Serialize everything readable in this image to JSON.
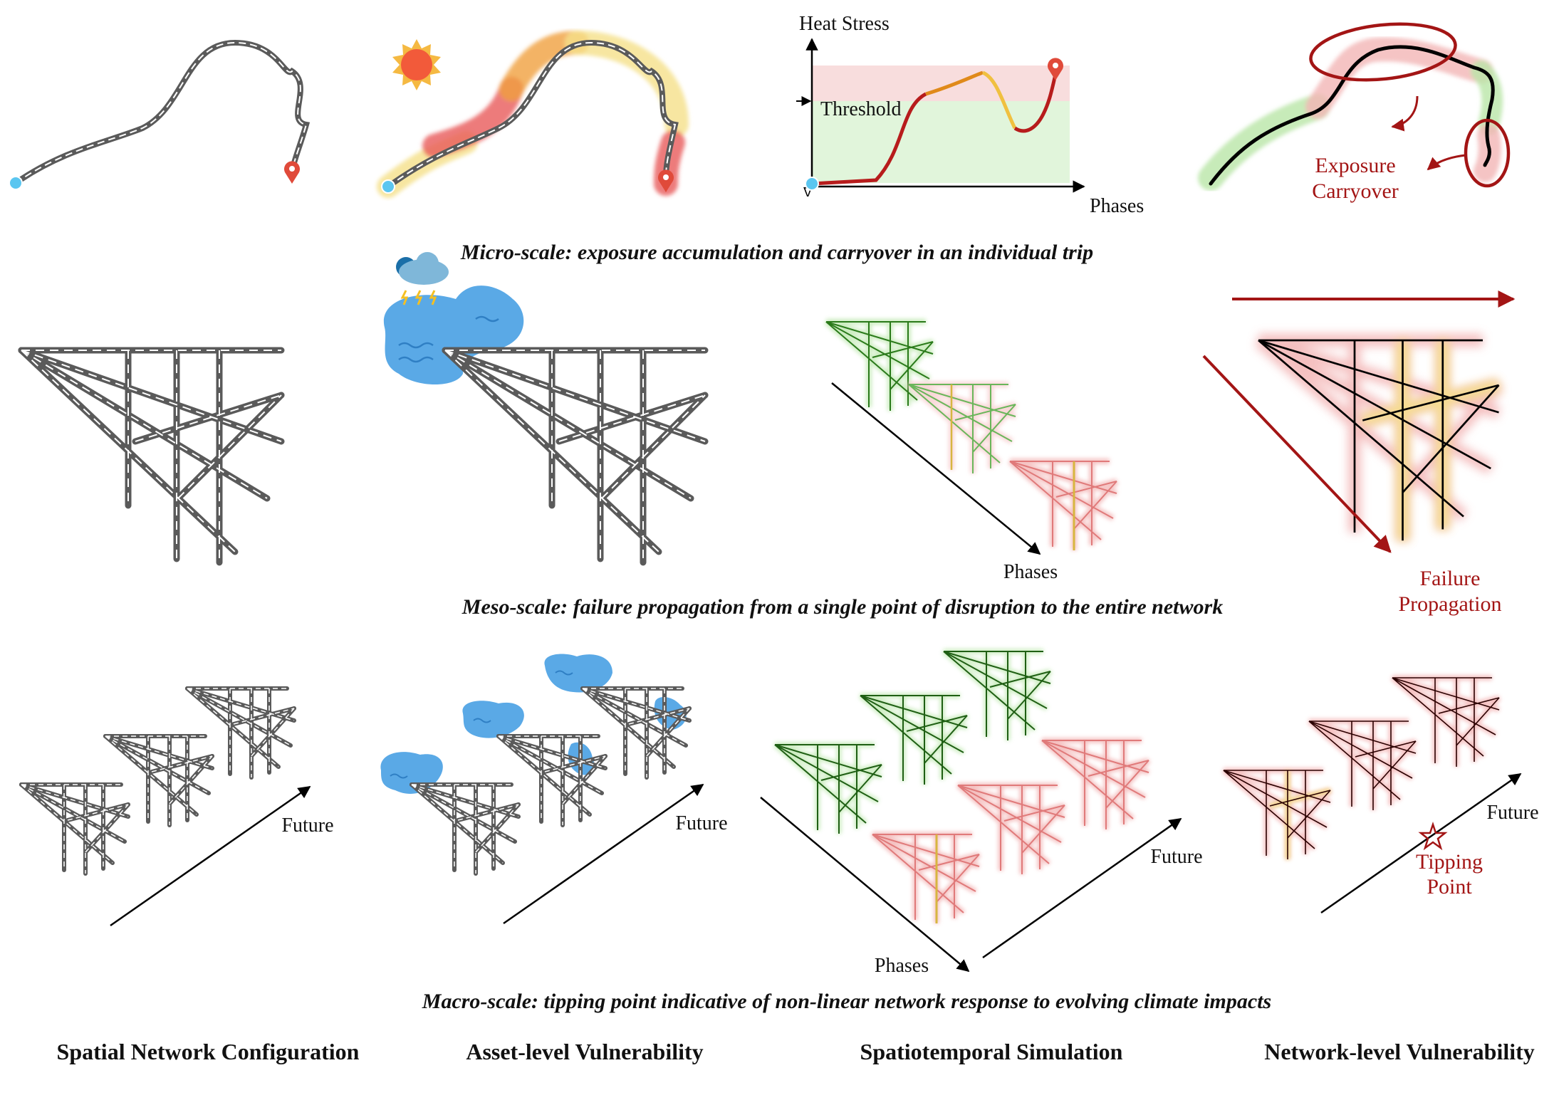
{
  "captions": {
    "micro": "Micro-scale: exposure accumulation and carryover in an individual trip",
    "meso": "Meso-scale: failure propagation from a single point of disruption to the entire network",
    "macro": "Macro-scale: tipping point indicative of non-linear network response to evolving climate impacts"
  },
  "columns": [
    "Spatial Network Configuration",
    "Asset-level Vulnerability",
    "Spatiotemporal Simulation",
    "Network-level Vulnerability"
  ],
  "micro": {
    "chart_ylabel": "Heat Stress",
    "chart_xlabel": "Phases",
    "threshold_label": "Threshold",
    "carryover_label": [
      "Exposure",
      "Carryover"
    ]
  },
  "meso": {
    "phases_label": "Phases",
    "propagation_label": [
      "Failure",
      "Propagation"
    ]
  },
  "macro": {
    "future_label": "Future",
    "phases_label": "Phases",
    "tipping_label": [
      "Tipping",
      "Point"
    ]
  },
  "colors": {
    "road": "#555555",
    "flood": "#5aa9e6",
    "danger": "#a31515",
    "heat_red": "#e85a5a",
    "heat_orange": "#f0a040",
    "heat_yellow": "#f5e08a",
    "safe_green": "#9ad88a"
  }
}
